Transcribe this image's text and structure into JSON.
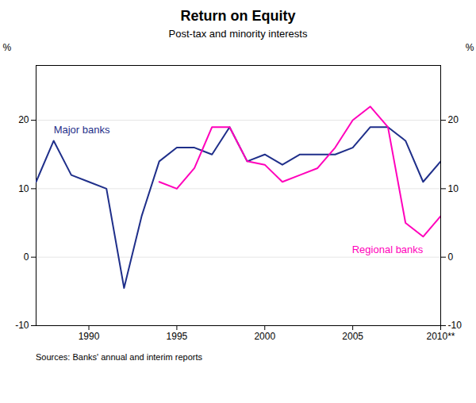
{
  "chart_data": {
    "type": "line",
    "title": "Return on Equity",
    "subtitle": "Post-tax and minority interests",
    "source": "Sources: Banks' annual and interim reports",
    "x": [
      1987,
      1988,
      1989,
      1990,
      1991,
      1992,
      1993,
      1994,
      1995,
      1996,
      1997,
      1998,
      1999,
      2000,
      2001,
      2002,
      2003,
      2004,
      2005,
      2006,
      2007,
      2008,
      2009,
      2010
    ],
    "series": [
      {
        "name": "Major banks",
        "color": "#1F2F8A",
        "values": [
          11,
          17,
          12,
          11,
          10,
          -4.5,
          6,
          14,
          16,
          16,
          15,
          19,
          14,
          15,
          13.5,
          15,
          15,
          15,
          16,
          19,
          19,
          17,
          11,
          14
        ]
      },
      {
        "name": "Regional banks",
        "color": "#FF00BB",
        "values": [
          null,
          null,
          null,
          null,
          null,
          null,
          null,
          11,
          10,
          13,
          19,
          19,
          14,
          13.5,
          11,
          12,
          13,
          16,
          20,
          22,
          19,
          5,
          3,
          6
        ]
      }
    ],
    "xlim": [
      1987,
      2010
    ],
    "xticks": [
      1990,
      1995,
      2000,
      2005,
      {
        "value": 2010,
        "label": "2010**"
      }
    ],
    "ylim": [
      -10,
      28
    ],
    "yticks": [
      -10,
      0,
      10,
      20
    ],
    "y_label": "%",
    "y2lim": [
      -10,
      28
    ],
    "y2ticks": [
      -10,
      0,
      10,
      20
    ],
    "y2_label": "%",
    "grid": true
  }
}
